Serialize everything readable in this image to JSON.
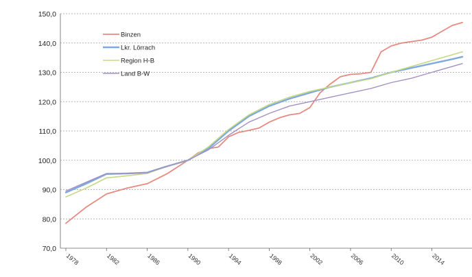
{
  "chart_data": {
    "type": "line",
    "title": "",
    "xlabel": "",
    "ylabel": "",
    "ylim": [
      70,
      150
    ],
    "xlim": [
      1978,
      2017
    ],
    "y_ticks": [
      "70,0",
      "80,0",
      "90,0",
      "100,0",
      "110,0",
      "120,0",
      "130,0",
      "140,0",
      "150,0"
    ],
    "x_ticks": [
      "1978",
      "1982",
      "1986",
      "1990",
      "1994",
      "1998",
      "2002",
      "2006",
      "2010",
      "2014"
    ],
    "grid": true,
    "legend_position": "top-left",
    "series": [
      {
        "name": "Binzen",
        "color": "#e58a80",
        "width": 1.8,
        "x": [
          1978,
          1980,
          1982,
          1984,
          1986,
          1988,
          1990,
          1991,
          1992,
          1993,
          1994,
          1995,
          1996,
          1997,
          1998,
          1999,
          2000,
          2001,
          2002,
          2003,
          2004,
          2005,
          2006,
          2007,
          2008,
          2009,
          2010,
          2011,
          2012,
          2013,
          2014,
          2015,
          2016,
          2017
        ],
        "y": [
          78.5,
          84,
          88.5,
          90.5,
          92,
          95.5,
          100,
          102.5,
          104,
          104.5,
          108,
          109.5,
          110.2,
          111,
          113,
          114.5,
          115.5,
          116,
          118,
          123,
          126,
          128.5,
          129.3,
          129.5,
          130,
          137,
          139,
          140,
          140.5,
          141,
          142,
          144,
          146,
          147
        ]
      },
      {
        "name": "Lkr. Lörrach",
        "color": "#7fa9de",
        "width": 2.4,
        "x": [
          1978,
          1980,
          1982,
          1984,
          1986,
          1988,
          1990,
          1992,
          1994,
          1996,
          1998,
          2000,
          2002,
          2004,
          2006,
          2008,
          2010,
          2012,
          2014,
          2016,
          2017
        ],
        "y": [
          89,
          92,
          95.3,
          95.5,
          95.8,
          98,
          100,
          104,
          110,
          115,
          118.5,
          121,
          123,
          125,
          126.5,
          128,
          130,
          131.5,
          133,
          134.5,
          135.3
        ]
      },
      {
        "name": "Region H-B",
        "color": "#c4d884",
        "width": 1.6,
        "x": [
          1978,
          1980,
          1982,
          1984,
          1986,
          1988,
          1990,
          1992,
          1994,
          1996,
          1998,
          2000,
          2002,
          2004,
          2006,
          2008,
          2010,
          2012,
          2014,
          2016,
          2017
        ],
        "y": [
          87.5,
          90.5,
          94,
          94.7,
          95.5,
          98,
          100,
          104.5,
          110.5,
          115.5,
          119,
          121.5,
          123.5,
          125,
          126.5,
          127.8,
          130,
          132,
          134,
          136,
          137
        ]
      },
      {
        "name": "Land B-W",
        "color": "#a18fc4",
        "width": 1.4,
        "x": [
          1978,
          1980,
          1982,
          1984,
          1986,
          1988,
          1990,
          1992,
          1994,
          1996,
          1998,
          2000,
          2002,
          2004,
          2006,
          2008,
          2010,
          2012,
          2014,
          2016,
          2017
        ],
        "y": [
          89.5,
          92.5,
          95.5,
          95.5,
          95.7,
          98,
          100,
          103.5,
          108.5,
          113,
          116,
          118.5,
          120,
          121.5,
          123,
          124.5,
          126.5,
          128,
          130,
          132,
          133
        ]
      }
    ]
  }
}
